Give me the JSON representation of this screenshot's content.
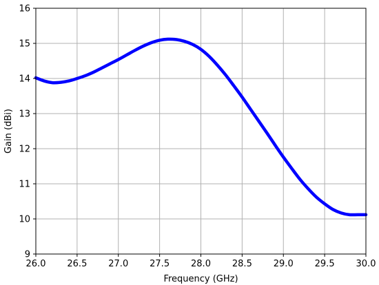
{
  "chart_data": {
    "type": "line",
    "title": "",
    "xlabel": "Frequency (GHz)",
    "ylabel": "Gain (dBi)",
    "xlim": [
      26.0,
      30.0
    ],
    "ylim": [
      9,
      16
    ],
    "xticks": [
      26.0,
      26.5,
      27.0,
      27.5,
      28.0,
      28.5,
      29.0,
      29.5,
      30.0
    ],
    "xtick_labels": [
      "26.0",
      "26.5",
      "27.0",
      "27.5",
      "28.0",
      "28.5",
      "29.0",
      "29.5",
      "30.0"
    ],
    "yticks": [
      9,
      10,
      11,
      12,
      13,
      14,
      15,
      16
    ],
    "ytick_labels": [
      "9",
      "10",
      "11",
      "12",
      "13",
      "14",
      "15",
      "16"
    ],
    "grid": true,
    "series": [
      {
        "color": "#0000ff",
        "x": [
          26.0,
          26.1,
          26.2,
          26.3,
          26.4,
          26.5,
          26.6,
          26.7,
          26.8,
          26.9,
          27.0,
          27.1,
          27.2,
          27.3,
          27.4,
          27.5,
          27.6,
          27.7,
          27.8,
          27.9,
          28.0,
          28.1,
          28.2,
          28.3,
          28.4,
          28.5,
          28.6,
          28.7,
          28.8,
          28.9,
          29.0,
          29.1,
          29.2,
          29.3,
          29.4,
          29.5,
          29.6,
          29.7,
          29.8,
          29.9,
          30.0
        ],
        "y": [
          14.02,
          13.93,
          13.88,
          13.89,
          13.93,
          14.0,
          14.08,
          14.18,
          14.3,
          14.42,
          14.54,
          14.67,
          14.8,
          14.92,
          15.02,
          15.09,
          15.12,
          15.11,
          15.06,
          14.97,
          14.83,
          14.63,
          14.38,
          14.1,
          13.79,
          13.47,
          13.13,
          12.79,
          12.45,
          12.1,
          11.76,
          11.44,
          11.13,
          10.86,
          10.62,
          10.43,
          10.27,
          10.17,
          10.12,
          10.12,
          10.12
        ]
      }
    ]
  }
}
